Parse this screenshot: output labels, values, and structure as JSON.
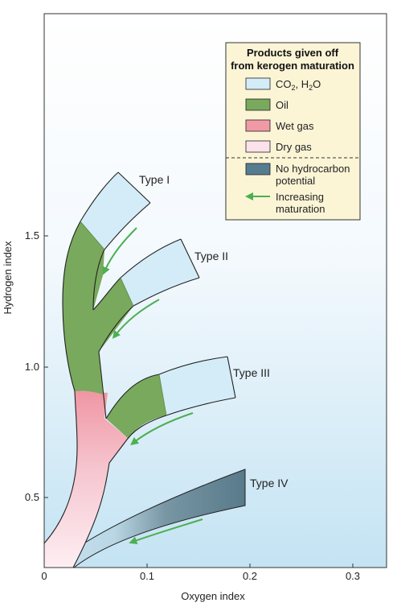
{
  "x_axis": {
    "label": "Oxygen index",
    "ticks": [
      "0",
      "0.1",
      "0.2",
      "0.3"
    ]
  },
  "y_axis": {
    "label": "Hydrogen index",
    "ticks": [
      "0.5",
      "1.0",
      "1.5"
    ]
  },
  "types": {
    "type1": "Type  I",
    "type2": "Type II",
    "type3": "Type III",
    "type4": "Type IV"
  },
  "legend": {
    "title_line1": "Products given off",
    "title_line2": "from kerogen maturation",
    "items": [
      {
        "label": "CO",
        "sub": "2",
        "suffix": ", H",
        "sub2": "2",
        "suffix2": "O",
        "color": "#d4ecf8"
      },
      {
        "label": "Oil",
        "color": "#79a95c"
      },
      {
        "label": "Wet gas",
        "color": "#f09aa6"
      },
      {
        "label": "Dry gas",
        "color": "#fbe2ea"
      },
      {
        "label_line1": "No hydrocarbon",
        "label_line2": "potential",
        "color": "#557d8f"
      },
      {
        "label_line1": "Increasing",
        "label_line2": "maturation",
        "color": "#4caf50"
      }
    ]
  },
  "colors": {
    "background_top": "#ffffff",
    "background_bottom": "#cfe9f6",
    "legend_bg": "#fbf5d6",
    "co2_h2o": "#d4ecf8",
    "oil": "#79a95c",
    "wet_gas": "#f09aa6",
    "dry_gas": "#fbe2ea",
    "no_hc": "#557d8f",
    "arrow": "#4caf50"
  }
}
